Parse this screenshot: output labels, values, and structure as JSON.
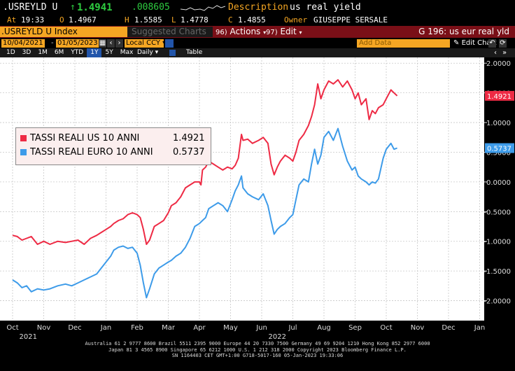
{
  "header": {
    "ticker": ".USREYLD U",
    "arrow": "↑",
    "last": "1.4941",
    "change": ".008605",
    "desc_label": "Description",
    "desc_value": "us real yield",
    "at_label": "At",
    "time": "19:33",
    "o_label": "O",
    "open": "1.4967",
    "h_label": "H",
    "high": "1.5585",
    "l_label": "L",
    "low": "1.4778",
    "c_label": "C",
    "close": "1.4855",
    "owner_label": "Owner",
    "owner": "GIUSEPPE SERSALE"
  },
  "toolbar": {
    "security": ".USREYLD U Index",
    "suggested": "Suggested Charts",
    "actions_num": "96)",
    "actions": "Actions",
    "edit_num": "97)",
    "edit": "Edit",
    "page_title": "G 196: us eur real yld"
  },
  "range": {
    "start": "10/04/2021",
    "end": "01/05/2023",
    "currency": "Local CCY",
    "add_data": "Add Data",
    "edit_chart": "Edit Chart"
  },
  "timeframes": [
    "1D",
    "3D",
    "1M",
    "6M",
    "YTD",
    "1Y",
    "5Y",
    "Max"
  ],
  "active_timeframe": "1Y",
  "frequency": "Daily",
  "table_label": "Table",
  "colors": {
    "us": "#ee2a44",
    "eu": "#3d9be9",
    "bg": "#ffffff",
    "grid": "#c8c8c8"
  },
  "chart_data": {
    "type": "line",
    "x_labels": [
      "Oct",
      "Nov",
      "Dec",
      "Jan",
      "Feb",
      "Mar",
      "Apr",
      "May",
      "Jun",
      "Jul",
      "Aug",
      "Sep",
      "Oct",
      "Nov",
      "Dec",
      "Jan"
    ],
    "year_labels": [
      "2021",
      "2022"
    ],
    "yticks": [
      "2.0000",
      "1.5000",
      "1.0000",
      "0.5000",
      "0.0000",
      "-0.5000",
      "-1.0000",
      "-1.5000",
      "-2.0000"
    ],
    "ylim": [
      -2.3,
      2.05
    ],
    "series": [
      {
        "name": "TASSI REALI US 10 ANNI",
        "last_label": "1.4921",
        "values": [
          [
            0.0,
            -0.9
          ],
          [
            0.15,
            -0.92
          ],
          [
            0.3,
            -0.98
          ],
          [
            0.45,
            -0.95
          ],
          [
            0.6,
            -0.92
          ],
          [
            0.8,
            -1.05
          ],
          [
            1.0,
            -1.0
          ],
          [
            1.2,
            -1.05
          ],
          [
            1.45,
            -1.0
          ],
          [
            1.7,
            -1.02
          ],
          [
            1.9,
            -1.0
          ],
          [
            2.1,
            -0.98
          ],
          [
            2.3,
            -1.05
          ],
          [
            2.5,
            -0.95
          ],
          [
            2.7,
            -0.9
          ],
          [
            2.85,
            -0.85
          ],
          [
            3.0,
            -0.8
          ],
          [
            3.15,
            -0.75
          ],
          [
            3.25,
            -0.7
          ],
          [
            3.4,
            -0.65
          ],
          [
            3.55,
            -0.62
          ],
          [
            3.7,
            -0.55
          ],
          [
            3.85,
            -0.52
          ],
          [
            4.0,
            -0.55
          ],
          [
            4.1,
            -0.6
          ],
          [
            4.2,
            -0.8
          ],
          [
            4.3,
            -1.05
          ],
          [
            4.4,
            -0.98
          ],
          [
            4.55,
            -0.75
          ],
          [
            4.7,
            -0.7
          ],
          [
            4.85,
            -0.65
          ],
          [
            5.0,
            -0.52
          ],
          [
            5.1,
            -0.4
          ],
          [
            5.25,
            -0.35
          ],
          [
            5.4,
            -0.25
          ],
          [
            5.55,
            -0.1
          ],
          [
            5.7,
            -0.05
          ],
          [
            5.85,
            0.0
          ],
          [
            6.0,
            0.0
          ],
          [
            6.05,
            -0.05
          ],
          [
            6.1,
            0.2
          ],
          [
            6.2,
            0.25
          ],
          [
            6.3,
            0.35
          ],
          [
            6.45,
            0.3
          ],
          [
            6.6,
            0.25
          ],
          [
            6.75,
            0.2
          ],
          [
            6.9,
            0.25
          ],
          [
            7.05,
            0.22
          ],
          [
            7.15,
            0.28
          ],
          [
            7.25,
            0.4
          ],
          [
            7.35,
            0.8
          ],
          [
            7.4,
            0.7
          ],
          [
            7.55,
            0.72
          ],
          [
            7.7,
            0.65
          ],
          [
            7.9,
            0.7
          ],
          [
            8.05,
            0.75
          ],
          [
            8.2,
            0.65
          ],
          [
            8.3,
            0.3
          ],
          [
            8.4,
            0.12
          ],
          [
            8.5,
            0.25
          ],
          [
            8.6,
            0.35
          ],
          [
            8.75,
            0.45
          ],
          [
            8.9,
            0.4
          ],
          [
            9.0,
            0.35
          ],
          [
            9.1,
            0.5
          ],
          [
            9.2,
            0.7
          ],
          [
            9.35,
            0.8
          ],
          [
            9.5,
            0.95
          ],
          [
            9.6,
            1.1
          ],
          [
            9.7,
            1.3
          ],
          [
            9.8,
            1.65
          ],
          [
            9.9,
            1.4
          ],
          [
            10.0,
            1.55
          ],
          [
            10.15,
            1.7
          ],
          [
            10.3,
            1.65
          ],
          [
            10.45,
            1.72
          ],
          [
            10.6,
            1.6
          ],
          [
            10.75,
            1.7
          ],
          [
            10.9,
            1.55
          ],
          [
            11.0,
            1.4
          ],
          [
            11.1,
            1.5
          ],
          [
            11.2,
            1.3
          ],
          [
            11.35,
            1.4
          ],
          [
            11.45,
            1.05
          ],
          [
            11.55,
            1.2
          ],
          [
            11.65,
            1.15
          ],
          [
            11.75,
            1.25
          ],
          [
            11.9,
            1.3
          ],
          [
            12.0,
            1.4
          ],
          [
            12.15,
            1.55
          ],
          [
            12.25,
            1.5
          ],
          [
            12.35,
            1.45
          ]
        ]
      },
      {
        "name": "TASSI REALI EURO 10 ANNI",
        "last_label": "0.5737",
        "values": [
          [
            0.0,
            -1.65
          ],
          [
            0.15,
            -1.7
          ],
          [
            0.3,
            -1.78
          ],
          [
            0.45,
            -1.75
          ],
          [
            0.6,
            -1.85
          ],
          [
            0.8,
            -1.8
          ],
          [
            1.0,
            -1.82
          ],
          [
            1.2,
            -1.8
          ],
          [
            1.45,
            -1.75
          ],
          [
            1.7,
            -1.72
          ],
          [
            1.9,
            -1.75
          ],
          [
            2.1,
            -1.7
          ],
          [
            2.3,
            -1.65
          ],
          [
            2.5,
            -1.6
          ],
          [
            2.7,
            -1.55
          ],
          [
            2.85,
            -1.45
          ],
          [
            3.0,
            -1.35
          ],
          [
            3.15,
            -1.25
          ],
          [
            3.25,
            -1.15
          ],
          [
            3.4,
            -1.1
          ],
          [
            3.55,
            -1.08
          ],
          [
            3.7,
            -1.12
          ],
          [
            3.85,
            -1.1
          ],
          [
            4.0,
            -1.2
          ],
          [
            4.1,
            -1.4
          ],
          [
            4.2,
            -1.7
          ],
          [
            4.3,
            -1.95
          ],
          [
            4.4,
            -1.8
          ],
          [
            4.55,
            -1.55
          ],
          [
            4.7,
            -1.45
          ],
          [
            4.85,
            -1.4
          ],
          [
            5.0,
            -1.35
          ],
          [
            5.1,
            -1.32
          ],
          [
            5.25,
            -1.25
          ],
          [
            5.4,
            -1.2
          ],
          [
            5.55,
            -1.1
          ],
          [
            5.7,
            -0.95
          ],
          [
            5.85,
            -0.75
          ],
          [
            6.0,
            -0.7
          ],
          [
            6.1,
            -0.65
          ],
          [
            6.2,
            -0.6
          ],
          [
            6.3,
            -0.45
          ],
          [
            6.45,
            -0.4
          ],
          [
            6.6,
            -0.35
          ],
          [
            6.75,
            -0.4
          ],
          [
            6.9,
            -0.5
          ],
          [
            7.05,
            -0.3
          ],
          [
            7.15,
            -0.15
          ],
          [
            7.25,
            -0.05
          ],
          [
            7.35,
            0.1
          ],
          [
            7.4,
            -0.1
          ],
          [
            7.55,
            -0.2
          ],
          [
            7.7,
            -0.25
          ],
          [
            7.9,
            -0.3
          ],
          [
            8.05,
            -0.2
          ],
          [
            8.2,
            -0.4
          ],
          [
            8.3,
            -0.65
          ],
          [
            8.4,
            -0.88
          ],
          [
            8.5,
            -0.8
          ],
          [
            8.6,
            -0.75
          ],
          [
            8.75,
            -0.7
          ],
          [
            8.9,
            -0.6
          ],
          [
            9.0,
            -0.55
          ],
          [
            9.1,
            -0.3
          ],
          [
            9.2,
            -0.05
          ],
          [
            9.35,
            0.05
          ],
          [
            9.5,
            0.0
          ],
          [
            9.6,
            0.3
          ],
          [
            9.7,
            0.55
          ],
          [
            9.8,
            0.3
          ],
          [
            9.9,
            0.45
          ],
          [
            10.0,
            0.75
          ],
          [
            10.15,
            0.85
          ],
          [
            10.3,
            0.7
          ],
          [
            10.45,
            0.9
          ],
          [
            10.6,
            0.6
          ],
          [
            10.75,
            0.35
          ],
          [
            10.9,
            0.2
          ],
          [
            11.0,
            0.25
          ],
          [
            11.1,
            0.1
          ],
          [
            11.2,
            0.05
          ],
          [
            11.35,
            0.0
          ],
          [
            11.45,
            -0.05
          ],
          [
            11.55,
            0.0
          ],
          [
            11.65,
            -0.02
          ],
          [
            11.75,
            0.05
          ],
          [
            11.9,
            0.4
          ],
          [
            12.0,
            0.55
          ],
          [
            12.15,
            0.65
          ],
          [
            12.25,
            0.55
          ],
          [
            12.35,
            0.57
          ]
        ]
      }
    ]
  },
  "legend": [
    {
      "name": "TASSI REALI US 10 ANNI",
      "value": "1.4921"
    },
    {
      "name": "TASSI REALI EURO 10 ANNI",
      "value": "0.5737"
    }
  ],
  "footer": {
    "line1": "Australia 61 2 9777 8600 Brazil 5511 2395 9000 Europe 44 20 7330 7500 Germany 49 69 9204 1210 Hong Kong 852 2977 6000",
    "line2": "Japan 81 3 4565 8900       Singapore 65 6212 1000       U.S. 1 212 318 2000       Copyright 2023 Bloomberg Finance L.P.",
    "line3": "SN 1164403 CET  GMT+1:00 G718-5017-160 05-Jan-2023 19:33:06"
  }
}
